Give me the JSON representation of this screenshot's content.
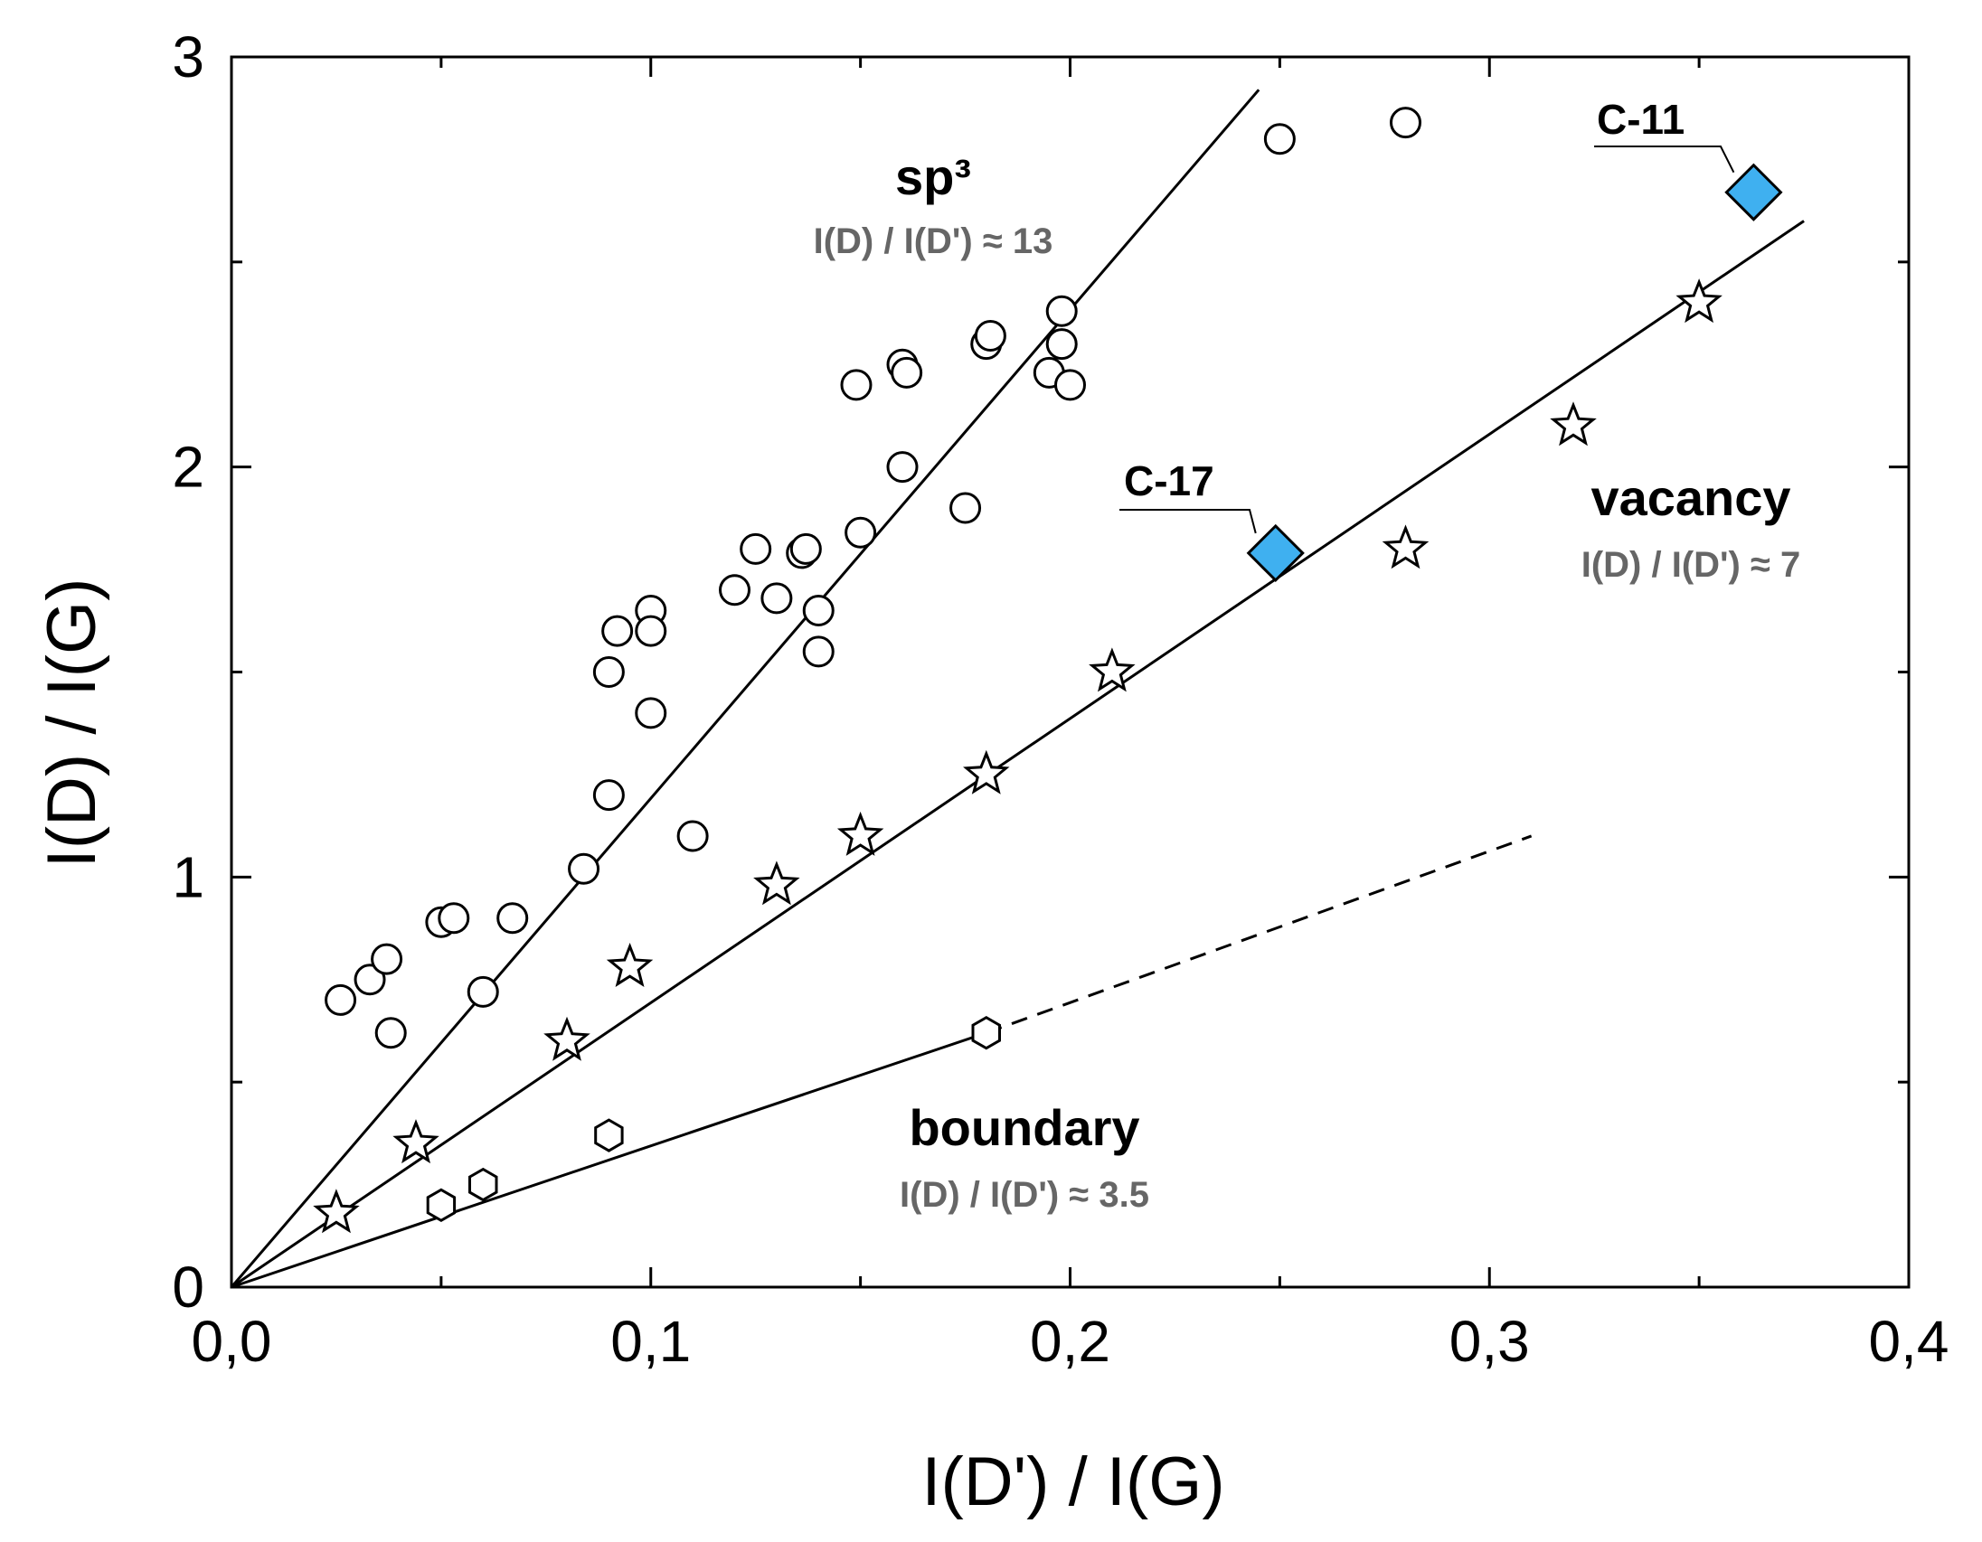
{
  "chart_data": {
    "type": "scatter",
    "xlabel": "I(D') / I(G)",
    "ylabel": "I(D) / I(G)",
    "xlim": [
      0,
      0.4
    ],
    "ylim": [
      0,
      3
    ],
    "x_ticks": [
      "0,0",
      "0,1",
      "0,2",
      "0,3",
      "0,4"
    ],
    "y_ticks": [
      "0",
      "1",
      "2",
      "3"
    ],
    "series": [
      {
        "name": "sp3",
        "marker": "circle",
        "points": [
          [
            0.026,
            0.7
          ],
          [
            0.033,
            0.75
          ],
          [
            0.037,
            0.8
          ],
          [
            0.038,
            0.62
          ],
          [
            0.05,
            0.89
          ],
          [
            0.053,
            0.9
          ],
          [
            0.06,
            0.72
          ],
          [
            0.067,
            0.9
          ],
          [
            0.084,
            1.02
          ],
          [
            0.09,
            1.2
          ],
          [
            0.09,
            1.5
          ],
          [
            0.092,
            1.6
          ],
          [
            0.1,
            1.65
          ],
          [
            0.1,
            1.6
          ],
          [
            0.1,
            1.4
          ],
          [
            0.11,
            1.1
          ],
          [
            0.12,
            1.7
          ],
          [
            0.125,
            1.8
          ],
          [
            0.13,
            1.68
          ],
          [
            0.136,
            1.79
          ],
          [
            0.137,
            1.8
          ],
          [
            0.14,
            1.65
          ],
          [
            0.14,
            1.55
          ],
          [
            0.149,
            2.2
          ],
          [
            0.15,
            1.84
          ],
          [
            0.16,
            2.25
          ],
          [
            0.161,
            2.23
          ],
          [
            0.16,
            2.0
          ],
          [
            0.175,
            1.9
          ],
          [
            0.18,
            2.3
          ],
          [
            0.181,
            2.32
          ],
          [
            0.195,
            2.23
          ],
          [
            0.198,
            2.38
          ],
          [
            0.198,
            2.3
          ],
          [
            0.2,
            2.2
          ],
          [
            0.25,
            2.8
          ],
          [
            0.28,
            2.84
          ]
        ]
      },
      {
        "name": "vacancy",
        "marker": "star",
        "points": [
          [
            0.025,
            0.18
          ],
          [
            0.044,
            0.35
          ],
          [
            0.08,
            0.6
          ],
          [
            0.095,
            0.78
          ],
          [
            0.13,
            0.98
          ],
          [
            0.15,
            1.1
          ],
          [
            0.18,
            1.25
          ],
          [
            0.21,
            1.5
          ],
          [
            0.28,
            1.8
          ],
          [
            0.32,
            2.1
          ],
          [
            0.35,
            2.4
          ]
        ]
      },
      {
        "name": "boundary",
        "marker": "hexagon",
        "points": [
          [
            0.05,
            0.2
          ],
          [
            0.06,
            0.25
          ],
          [
            0.09,
            0.37
          ],
          [
            0.18,
            0.62
          ]
        ]
      }
    ],
    "fit_lines": [
      {
        "name": "sp3",
        "x": [
          0.0,
          0.245
        ],
        "y": [
          0.0,
          2.92
        ],
        "style": "solid"
      },
      {
        "name": "vacancy",
        "x": [
          0.0,
          0.375
        ],
        "y": [
          0.0,
          2.6
        ],
        "style": "solid"
      },
      {
        "name": "boundary-solid",
        "x": [
          0.0,
          0.18
        ],
        "y": [
          0.0,
          0.62
        ],
        "style": "solid"
      },
      {
        "name": "boundary-dashed",
        "x": [
          0.18,
          0.31
        ],
        "y": [
          0.62,
          1.1
        ],
        "style": "dashed"
      }
    ],
    "samples": [
      {
        "name": "C-17",
        "x": 0.249,
        "y": 1.79,
        "color": "#3fb0f0"
      },
      {
        "name": "C-11",
        "x": 0.363,
        "y": 2.67,
        "color": "#3fb0f0"
      }
    ],
    "annotations": [
      {
        "name": "sp3",
        "title": "sp³",
        "ratio": "I(D) / I(D') ≈ 13"
      },
      {
        "name": "vacancy",
        "title": "vacancy",
        "ratio": "I(D) / I(D') ≈ 7"
      },
      {
        "name": "boundary",
        "title": "boundary",
        "ratio": "I(D) / I(D') ≈ 3.5"
      }
    ]
  }
}
